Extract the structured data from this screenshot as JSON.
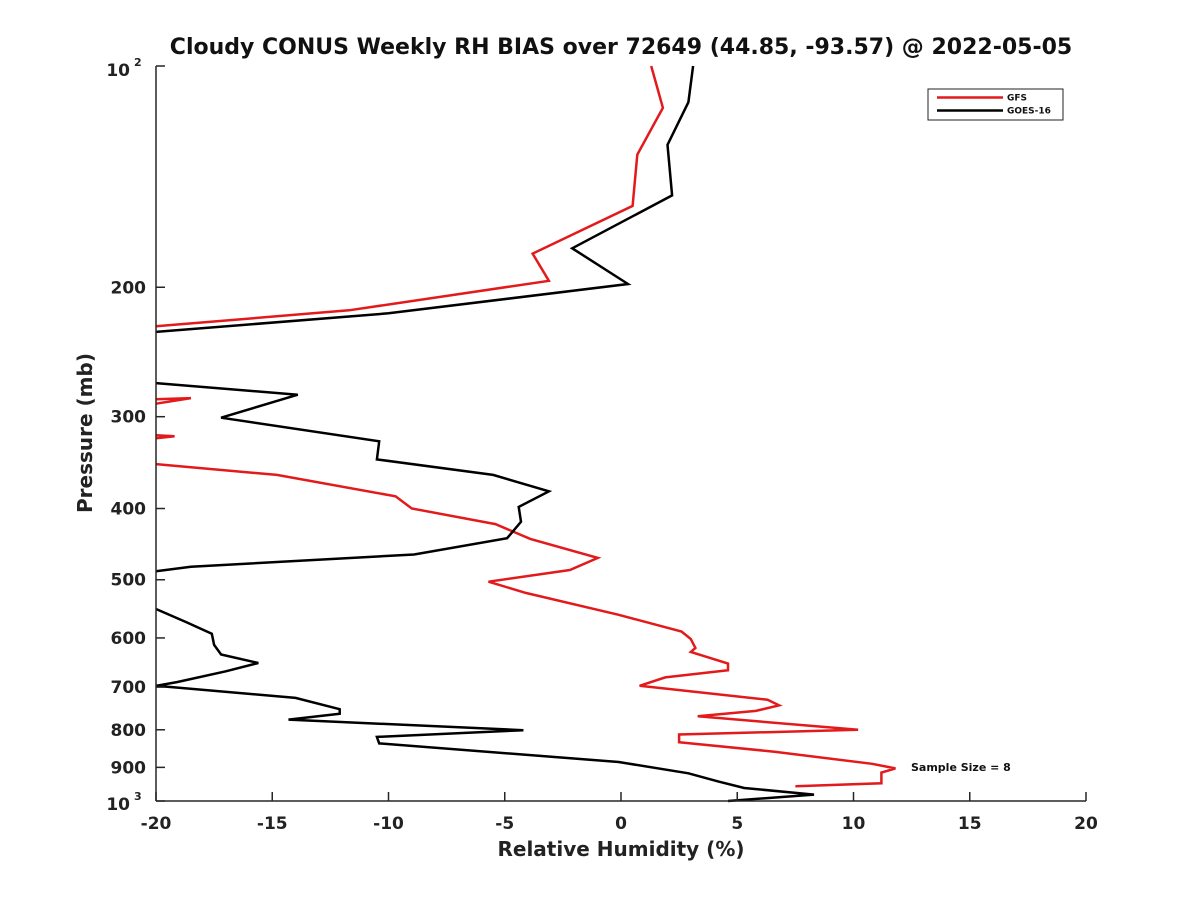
{
  "chart_data": {
    "type": "line",
    "title": "Cloudy CONUS Weekly RH BIAS over 72649 (44.85, -93.57) @ 2022-05-05",
    "xlabel": "Relative Humidity (%)",
    "ylabel": "Pressure (mb)",
    "xlim": [
      -20,
      20
    ],
    "ylim": [
      100,
      1000
    ],
    "y_scale": "log",
    "y_reversed": true,
    "grid": false,
    "legend_position": "top-right",
    "x_ticks": [
      "-20",
      "-15",
      "-10",
      "-5",
      "0",
      "5",
      "10",
      "15",
      "20"
    ],
    "y_tick_labels": [
      "200",
      "300",
      "400",
      "500",
      "600",
      "700",
      "800",
      "900"
    ],
    "y_tick_top": {
      "base": "10",
      "exp": "2"
    },
    "y_tick_bottom": {
      "base": "10",
      "exp": "3"
    },
    "annotation": "Sample Size = 8",
    "colors": {
      "GFS": "#e31a1c",
      "GOES-16": "#000000"
    },
    "series": [
      {
        "name": "GFS",
        "color": "#e31a1c",
        "segments": [
          [
            [
              1.3,
              100
            ],
            [
              1.8,
              114
            ],
            [
              0.7,
              132
            ],
            [
              0.5,
              155
            ],
            [
              -3.8,
              180
            ],
            [
              -3.1,
              196
            ],
            [
              -11.7,
              215
            ],
            [
              -20,
              226
            ]
          ],
          [
            [
              -20,
              284
            ],
            [
              -18.5,
              283
            ],
            [
              -20,
              288
            ]
          ],
          [
            [
              -20,
              318
            ],
            [
              -19.2,
              319
            ],
            [
              -20,
              321
            ]
          ],
          [
            [
              -20,
              348
            ],
            [
              -14.8,
              360
            ],
            [
              -9.7,
              385
            ],
            [
              -9.0,
              400
            ],
            [
              -5.4,
              420
            ],
            [
              -3.9,
              440
            ],
            [
              -1.0,
              467
            ],
            [
              -2.2,
              485
            ],
            [
              -5.7,
              503
            ],
            [
              -4.1,
              521
            ],
            [
              -0.1,
              558
            ],
            [
              2.6,
              588
            ],
            [
              3.0,
              602
            ],
            [
              3.2,
              619
            ],
            [
              3.0,
              627
            ],
            [
              4.6,
              650
            ],
            [
              4.6,
              664
            ],
            [
              1.9,
              679
            ],
            [
              0.8,
              697
            ],
            [
              6.3,
              728
            ],
            [
              6.8,
              741
            ],
            [
              5.8,
              754
            ],
            [
              3.3,
              767
            ],
            [
              10.2,
              800
            ],
            [
              2.5,
              812
            ],
            [
              2.5,
              832
            ],
            [
              6.6,
              857
            ],
            [
              10.8,
              890
            ],
            [
              11.8,
              903
            ],
            [
              11.2,
              915
            ],
            [
              11.2,
              946
            ],
            [
              7.5,
              955
            ]
          ]
        ]
      },
      {
        "name": "GOES-16",
        "color": "#000000",
        "segments": [
          [
            [
              3.1,
              100
            ],
            [
              2.9,
              112
            ],
            [
              2.0,
              128
            ],
            [
              2.2,
              150
            ],
            [
              -2.1,
              177
            ],
            [
              0.3,
              198
            ],
            [
              -10.0,
              217
            ],
            [
              -20,
              230
            ]
          ],
          [
            [
              -20,
              270
            ],
            [
              -13.9,
              280
            ],
            [
              -17.2,
              301
            ],
            [
              -10.4,
              324
            ],
            [
              -10.5,
              343
            ],
            [
              -5.5,
              360
            ],
            [
              -3.1,
              379
            ],
            [
              -4.4,
              398
            ],
            [
              -4.3,
              417
            ],
            [
              -4.9,
              439
            ],
            [
              -8.9,
              462
            ],
            [
              -18.5,
              480
            ],
            [
              -20,
              487
            ]
          ],
          [
            [
              -20,
              548
            ],
            [
              -18.7,
              571
            ],
            [
              -17.6,
              592
            ],
            [
              -17.5,
              613
            ],
            [
              -17.2,
              632
            ],
            [
              -15.6,
              649
            ],
            [
              -17.0,
              666
            ],
            [
              -19.1,
              689
            ],
            [
              -20,
              697
            ],
            [
              -14.0,
              724
            ],
            [
              -12.1,
              750
            ],
            [
              -12.1,
              761
            ],
            [
              -14.3,
              775
            ],
            [
              -4.2,
              801
            ],
            [
              -10.5,
              818
            ],
            [
              -10.4,
              835
            ],
            [
              -0.1,
              885
            ],
            [
              2.9,
              917
            ],
            [
              4.2,
              941
            ],
            [
              5.3,
              960
            ],
            [
              8.3,
              980
            ],
            [
              4.6,
              1000
            ]
          ]
        ]
      }
    ]
  }
}
